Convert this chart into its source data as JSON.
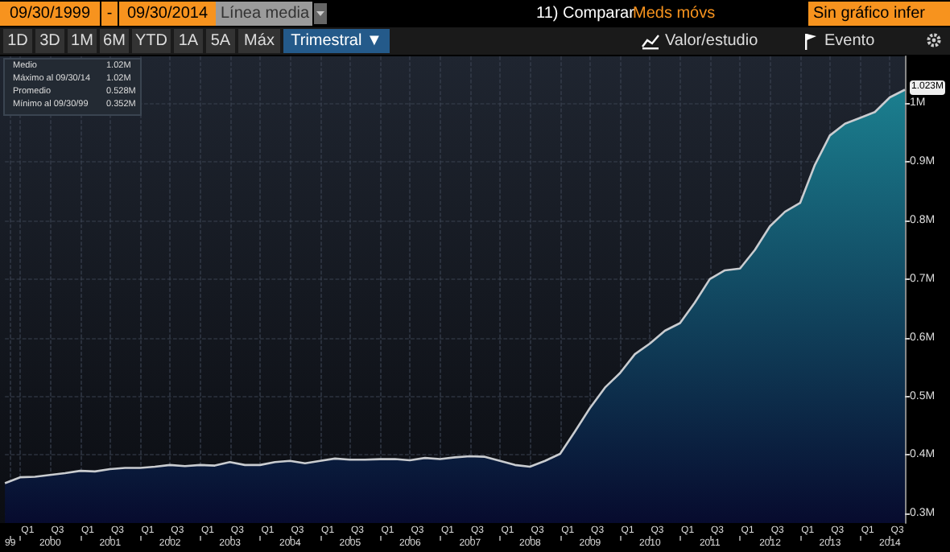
{
  "chart_data": {
    "type": "area",
    "x": [
      "1999-09-30",
      "1999-12-31",
      "2000-03-31",
      "2000-06-30",
      "2000-09-30",
      "2000-12-31",
      "2001-03-31",
      "2001-06-30",
      "2001-09-30",
      "2001-12-31",
      "2002-03-31",
      "2002-06-30",
      "2002-09-30",
      "2002-12-31",
      "2003-03-31",
      "2003-06-30",
      "2003-09-30",
      "2003-12-31",
      "2004-03-31",
      "2004-06-30",
      "2004-09-30",
      "2004-12-31",
      "2005-03-31",
      "2005-06-30",
      "2005-09-30",
      "2005-12-31",
      "2006-03-31",
      "2006-06-30",
      "2006-09-30",
      "2006-12-31",
      "2007-03-31",
      "2007-06-30",
      "2007-09-30",
      "2007-12-31",
      "2008-03-31",
      "2008-06-30",
      "2008-09-30",
      "2008-12-31",
      "2009-03-31",
      "2009-06-30",
      "2009-09-30",
      "2009-12-31",
      "2010-03-31",
      "2010-06-30",
      "2010-09-30",
      "2010-12-31",
      "2011-03-31",
      "2011-06-30",
      "2011-09-30",
      "2011-12-31",
      "2012-03-31",
      "2012-06-30",
      "2012-09-30",
      "2012-12-31",
      "2013-03-31",
      "2013-06-30",
      "2013-09-30",
      "2013-12-31",
      "2014-03-31",
      "2014-06-30",
      "2014-09-30"
    ],
    "series": [
      {
        "color": "#1b7f8f",
        "values": [
          0.352,
          0.362,
          0.363,
          0.366,
          0.369,
          0.373,
          0.372,
          0.376,
          0.378,
          0.378,
          0.38,
          0.383,
          0.381,
          0.383,
          0.382,
          0.388,
          0.383,
          0.383,
          0.388,
          0.39,
          0.386,
          0.39,
          0.394,
          0.392,
          0.392,
          0.393,
          0.393,
          0.391,
          0.395,
          0.393,
          0.396,
          0.398,
          0.397,
          0.39,
          0.383,
          0.38,
          0.39,
          0.402,
          0.44,
          0.48,
          0.515,
          0.54,
          0.572,
          0.59,
          0.612,
          0.625,
          0.66,
          0.7,
          0.715,
          0.718,
          0.75,
          0.79,
          0.815,
          0.83,
          0.895,
          0.945,
          0.965,
          0.975,
          0.985,
          1.01,
          1.023
        ]
      }
    ],
    "xlim": [
      "1999-09-30",
      "2014-09-30"
    ],
    "xticks": [
      {
        "value": "1999-11-01",
        "label": "99"
      },
      {
        "value": "2000-01-01",
        "label": null
      },
      {
        "value": "2000-07-01",
        "label": "2000"
      },
      {
        "value": "2001-01-01",
        "label": null
      },
      {
        "value": "2001-07-01",
        "label": "2001"
      },
      {
        "value": "2002-01-01",
        "label": null
      },
      {
        "value": "2002-07-01",
        "label": "2002"
      },
      {
        "value": "2003-01-01",
        "label": null
      },
      {
        "value": "2003-07-01",
        "label": "2003"
      },
      {
        "value": "2004-01-01",
        "label": null
      },
      {
        "value": "2004-07-01",
        "label": "2004"
      },
      {
        "value": "2005-01-01",
        "label": null
      },
      {
        "value": "2005-07-01",
        "label": "2005"
      },
      {
        "value": "2006-01-01",
        "label": null
      },
      {
        "value": "2006-07-01",
        "label": "2006"
      },
      {
        "value": "2007-01-01",
        "label": null
      },
      {
        "value": "2007-07-01",
        "label": "2007"
      },
      {
        "value": "2008-01-01",
        "label": null
      },
      {
        "value": "2008-07-01",
        "label": "2008"
      },
      {
        "value": "2009-01-01",
        "label": null
      },
      {
        "value": "2009-07-01",
        "label": "2009"
      },
      {
        "value": "2010-01-01",
        "label": null
      },
      {
        "value": "2010-07-01",
        "label": "2010"
      },
      {
        "value": "2011-01-01",
        "label": null
      },
      {
        "value": "2011-07-01",
        "label": "2011"
      },
      {
        "value": "2012-01-01",
        "label": null
      },
      {
        "value": "2012-07-01",
        "label": "2012"
      },
      {
        "value": "2013-01-01",
        "label": null
      },
      {
        "value": "2013-07-01",
        "label": "2013"
      },
      {
        "value": "2014-01-01",
        "label": null
      },
      {
        "value": "2014-07-01",
        "label": "2014"
      }
    ],
    "x2lim": [
      "1999-09-30",
      "2014-09-30"
    ],
    "x2ticks": [
      {
        "value": "2000-02-15",
        "label": "Q1"
      },
      {
        "value": "2000-08-15",
        "label": "Q3"
      },
      {
        "value": "2001-02-15",
        "label": "Q1"
      },
      {
        "value": "2001-08-15",
        "label": "Q3"
      },
      {
        "value": "2002-02-15",
        "label": "Q1"
      },
      {
        "value": "2002-08-15",
        "label": "Q3"
      },
      {
        "value": "2003-02-15",
        "label": "Q1"
      },
      {
        "value": "2003-08-15",
        "label": "Q3"
      },
      {
        "value": "2004-02-15",
        "label": "Q1"
      },
      {
        "value": "2004-08-15",
        "label": "Q3"
      },
      {
        "value": "2005-02-15",
        "label": "Q1"
      },
      {
        "value": "2005-08-15",
        "label": "Q3"
      },
      {
        "value": "2006-02-15",
        "label": "Q1"
      },
      {
        "value": "2006-08-15",
        "label": "Q3"
      },
      {
        "value": "2007-02-15",
        "label": "Q1"
      },
      {
        "value": "2007-08-15",
        "label": "Q3"
      },
      {
        "value": "2008-02-15",
        "label": "Q1"
      },
      {
        "value": "2008-08-15",
        "label": "Q3"
      },
      {
        "value": "2009-02-15",
        "label": "Q1"
      },
      {
        "value": "2009-08-15",
        "label": "Q3"
      },
      {
        "value": "2010-02-15",
        "label": "Q1"
      },
      {
        "value": "2010-08-15",
        "label": "Q3"
      },
      {
        "value": "2011-02-15",
        "label": "Q1"
      },
      {
        "value": "2011-08-15",
        "label": "Q3"
      },
      {
        "value": "2012-02-15",
        "label": "Q1"
      },
      {
        "value": "2012-08-15",
        "label": "Q3"
      },
      {
        "value": "2013-02-15",
        "label": "Q1"
      },
      {
        "value": "2013-08-15",
        "label": "Q3"
      },
      {
        "value": "2014-02-15",
        "label": "Q1"
      },
      {
        "value": "2014-08-15",
        "label": "Q3"
      }
    ],
    "ylim": [
      0.284,
      1.08
    ],
    "yticks": [
      {
        "value": 0.3,
        "label": "0.3M"
      },
      {
        "value": 0.4,
        "label": "0.4M"
      },
      {
        "value": 0.5,
        "label": "0.5M"
      },
      {
        "value": 0.6,
        "label": "0.6M"
      },
      {
        "value": 0.7,
        "label": "0.7M"
      },
      {
        "value": 0.8,
        "label": "0.8M"
      },
      {
        "value": 0.9,
        "label": "0.9M"
      },
      {
        "value": 1,
        "label": "1M"
      }
    ],
    "grid": true,
    "annotations": [
      "09/30/1999",
      "-",
      "09/30/2014",
      "Línea media",
      "11) Comparar",
      "Meds móvs",
      "Sin gráfico infer",
      "1D",
      "3D",
      "1M",
      "6M",
      "YTD",
      "1A",
      "5A",
      "Máx",
      "Trimestral ▼",
      "Valor/estudio",
      "Evento",
      "Medio",
      "1.02M",
      "Máximo al 09/30/14",
      "1.02M",
      "Promedio",
      "0.528M",
      "Mínimo al 09/30/99",
      "0.352M",
      {
        "text": "1.023M",
        "x": "2014-09-30",
        "y": 1.023
      }
    ]
  }
}
